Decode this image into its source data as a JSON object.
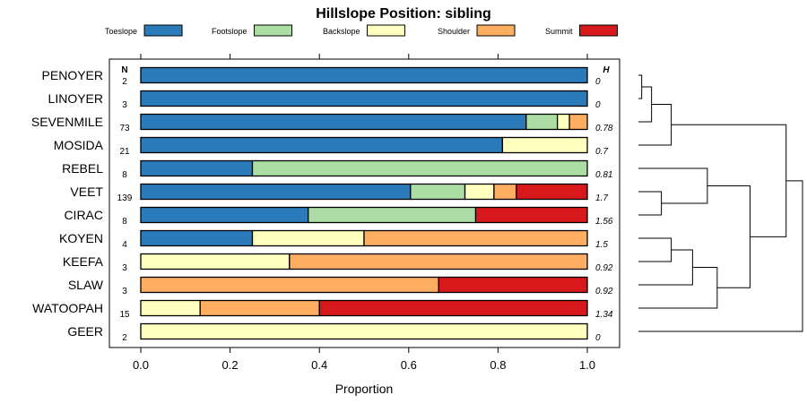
{
  "chart_data": {
    "type": "stacked-bar-horizontal",
    "title": "Hillslope Position: sibling",
    "xlabel": "Proportion",
    "xlim": [
      0,
      1
    ],
    "x_ticks": [
      "0.0",
      "0.2",
      "0.4",
      "0.6",
      "0.8",
      "1.0"
    ],
    "n_header": "N",
    "h_header": "H",
    "legend": [
      {
        "name": "Toeslope",
        "color": "#2b7bba"
      },
      {
        "name": "Footslope",
        "color": "#abdda4"
      },
      {
        "name": "Backslope",
        "color": "#ffffbf"
      },
      {
        "name": "Shoulder",
        "color": "#fdae61"
      },
      {
        "name": "Summit",
        "color": "#d7191c"
      }
    ],
    "rows": [
      {
        "name": "PENOYER",
        "n": "2",
        "h": "0",
        "values": [
          1.0,
          0,
          0,
          0,
          0
        ]
      },
      {
        "name": "LINOYER",
        "n": "3",
        "h": "0",
        "values": [
          1.0,
          0,
          0,
          0,
          0
        ]
      },
      {
        "name": "SEVENMILE",
        "n": "73",
        "h": "0.78",
        "values": [
          0.863,
          0.07,
          0.027,
          0.04,
          0
        ]
      },
      {
        "name": "MOSIDA",
        "n": "21",
        "h": "0.7",
        "values": [
          0.81,
          0,
          0.19,
          0,
          0
        ]
      },
      {
        "name": "REBEL",
        "n": "8",
        "h": "0.81",
        "values": [
          0.25,
          0.75,
          0,
          0,
          0
        ]
      },
      {
        "name": "VEET",
        "n": "139",
        "h": "1.7",
        "values": [
          0.604,
          0.122,
          0.065,
          0.05,
          0.159
        ]
      },
      {
        "name": "CIRAC",
        "n": "8",
        "h": "1.56",
        "values": [
          0.375,
          0.375,
          0,
          0,
          0.25
        ]
      },
      {
        "name": "KOYEN",
        "n": "4",
        "h": "1.5",
        "values": [
          0.25,
          0,
          0.25,
          0.5,
          0
        ]
      },
      {
        "name": "KEEFA",
        "n": "3",
        "h": "0.92",
        "values": [
          0,
          0,
          0.333,
          0.667,
          0
        ]
      },
      {
        "name": "SLAW",
        "n": "3",
        "h": "0.92",
        "values": [
          0,
          0,
          0,
          0.667,
          0.333
        ]
      },
      {
        "name": "WATOOPAH",
        "n": "15",
        "h": "1.34",
        "values": [
          0,
          0,
          0.133,
          0.267,
          0.6
        ]
      },
      {
        "name": "GEER",
        "n": "2",
        "h": "0",
        "values": [
          0,
          0,
          1.0,
          0,
          0
        ]
      }
    ],
    "dendrogram": {
      "merges": [
        {
          "a": "PENOYER",
          "b": "LINOYER",
          "height": 0.02
        },
        {
          "a": "m1",
          "b": "SEVENMILE",
          "height": 0.08
        },
        {
          "a": "m2",
          "b": "MOSIDA",
          "height": 0.2
        },
        {
          "a": "VEET",
          "b": "CIRAC",
          "height": 0.14
        },
        {
          "a": "REBEL",
          "b": "m4",
          "height": 0.42
        },
        {
          "a": "KOYEN",
          "b": "KEEFA",
          "height": 0.2
        },
        {
          "a": "m6",
          "b": "SLAW",
          "height": 0.33
        },
        {
          "a": "m7",
          "b": "WATOOPAH",
          "height": 0.48
        },
        {
          "a": "m5",
          "b": "m8",
          "height": 0.68
        },
        {
          "a": "m3",
          "b": "m9",
          "height": 0.9
        },
        {
          "a": "m10",
          "b": "GEER",
          "height": 1.0
        }
      ]
    }
  }
}
